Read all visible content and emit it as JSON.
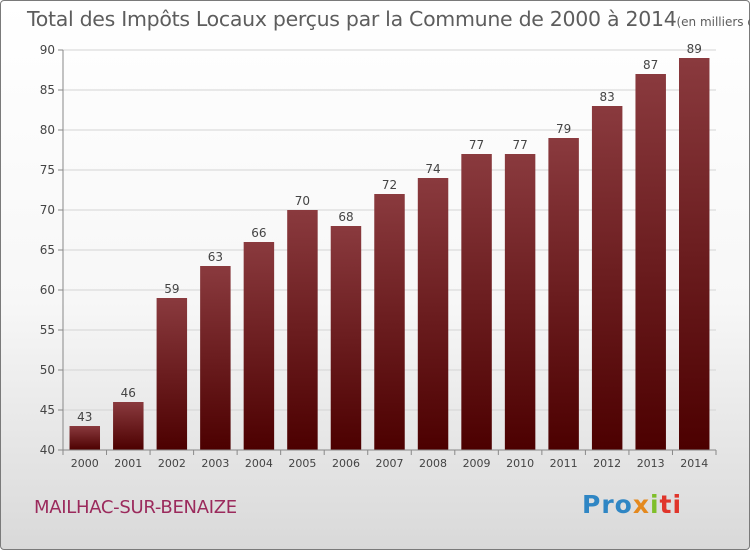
{
  "title": "Total des Impôts Locaux perçus par la Commune de 2000 à 2014",
  "unit_label": "(en milliers d'€)",
  "commune": "MAILHAC-SUR-BENAIZE",
  "logo": {
    "p1": "Pro",
    "p2": "x",
    "p3": "i",
    "p4": "ti"
  },
  "colors": {
    "bar_light": "#8a3a3e",
    "bar_dark": "#4c0000",
    "grid": "#d4d4d4",
    "axis": "#888888",
    "text": "#444444"
  },
  "chart_data": {
    "type": "bar",
    "title": "Total des Impôts Locaux perçus par la Commune de 2000 à 2014",
    "xlabel": "",
    "ylabel": "",
    "categories": [
      "2000",
      "2001",
      "2002",
      "2003",
      "2004",
      "2005",
      "2006",
      "2007",
      "2008",
      "2009",
      "2010",
      "2011",
      "2012",
      "2013",
      "2014"
    ],
    "values": [
      43,
      46,
      59,
      63,
      66,
      70,
      68,
      72,
      74,
      77,
      77,
      79,
      83,
      87,
      89
    ],
    "ylim": [
      40,
      90
    ],
    "yticks": [
      40,
      45,
      50,
      55,
      60,
      65,
      70,
      75,
      80,
      85,
      90
    ],
    "grid": true
  }
}
